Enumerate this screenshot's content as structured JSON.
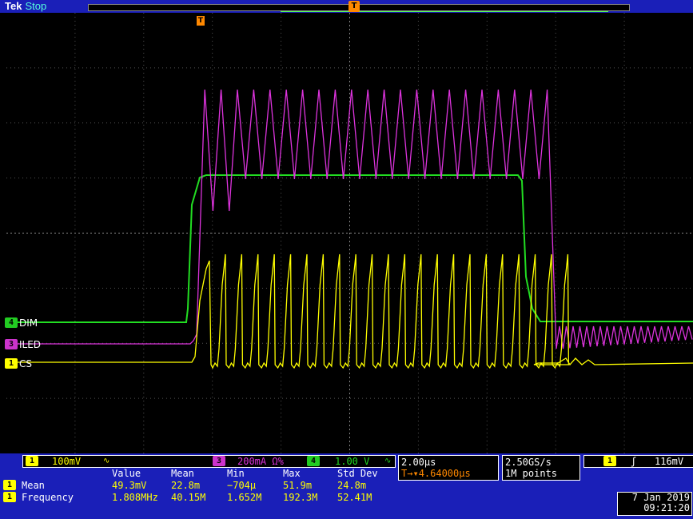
{
  "status": {
    "brand": "Tek",
    "state": "Stop"
  },
  "trigger": {
    "marker": "T",
    "level": "116mV",
    "position": "4.64000µs"
  },
  "channels": [
    {
      "id": "4",
      "label": "DIM",
      "color": "#22dd22",
      "scale": "1.00 V"
    },
    {
      "id": "3",
      "label": "ILED",
      "color": "#dd33dd",
      "scale": "200mA Ω%"
    },
    {
      "id": "1",
      "label": "CS",
      "color": "#ffff00",
      "scale": "100mV"
    }
  ],
  "ch1_coupling_icon": "bandwidth-limit-icon",
  "timebase": {
    "scale": "2.00µs",
    "delay_prefix": "T→▾",
    "delay": "4.64000µs"
  },
  "acquisition": {
    "rate": "2.50GS/s",
    "points": "1M points"
  },
  "trigger_panel": {
    "channel": "1",
    "slope": "rising-edge-icon",
    "level": "116mV"
  },
  "measurements": {
    "headers": [
      "Value",
      "Mean",
      "Min",
      "Max",
      "Std Dev"
    ],
    "rows": [
      {
        "channel": "1",
        "name": "Mean",
        "values": [
          "49.3mV",
          "22.8m",
          "−704µ",
          "51.9m",
          "24.8m"
        ]
      },
      {
        "channel": "1",
        "name": "Frequency",
        "values": [
          "1.808MHz",
          "40.15M",
          "1.652M",
          "192.3M",
          "52.41M"
        ]
      }
    ]
  },
  "datetime": {
    "date": "7 Jan 2019",
    "time": "09:21:20"
  },
  "colors": {
    "ch1": "#ffff00",
    "ch3": "#dd33dd",
    "ch4": "#22dd22",
    "ui_blue": "#1a1fb8",
    "trigger": "#ff8800"
  }
}
